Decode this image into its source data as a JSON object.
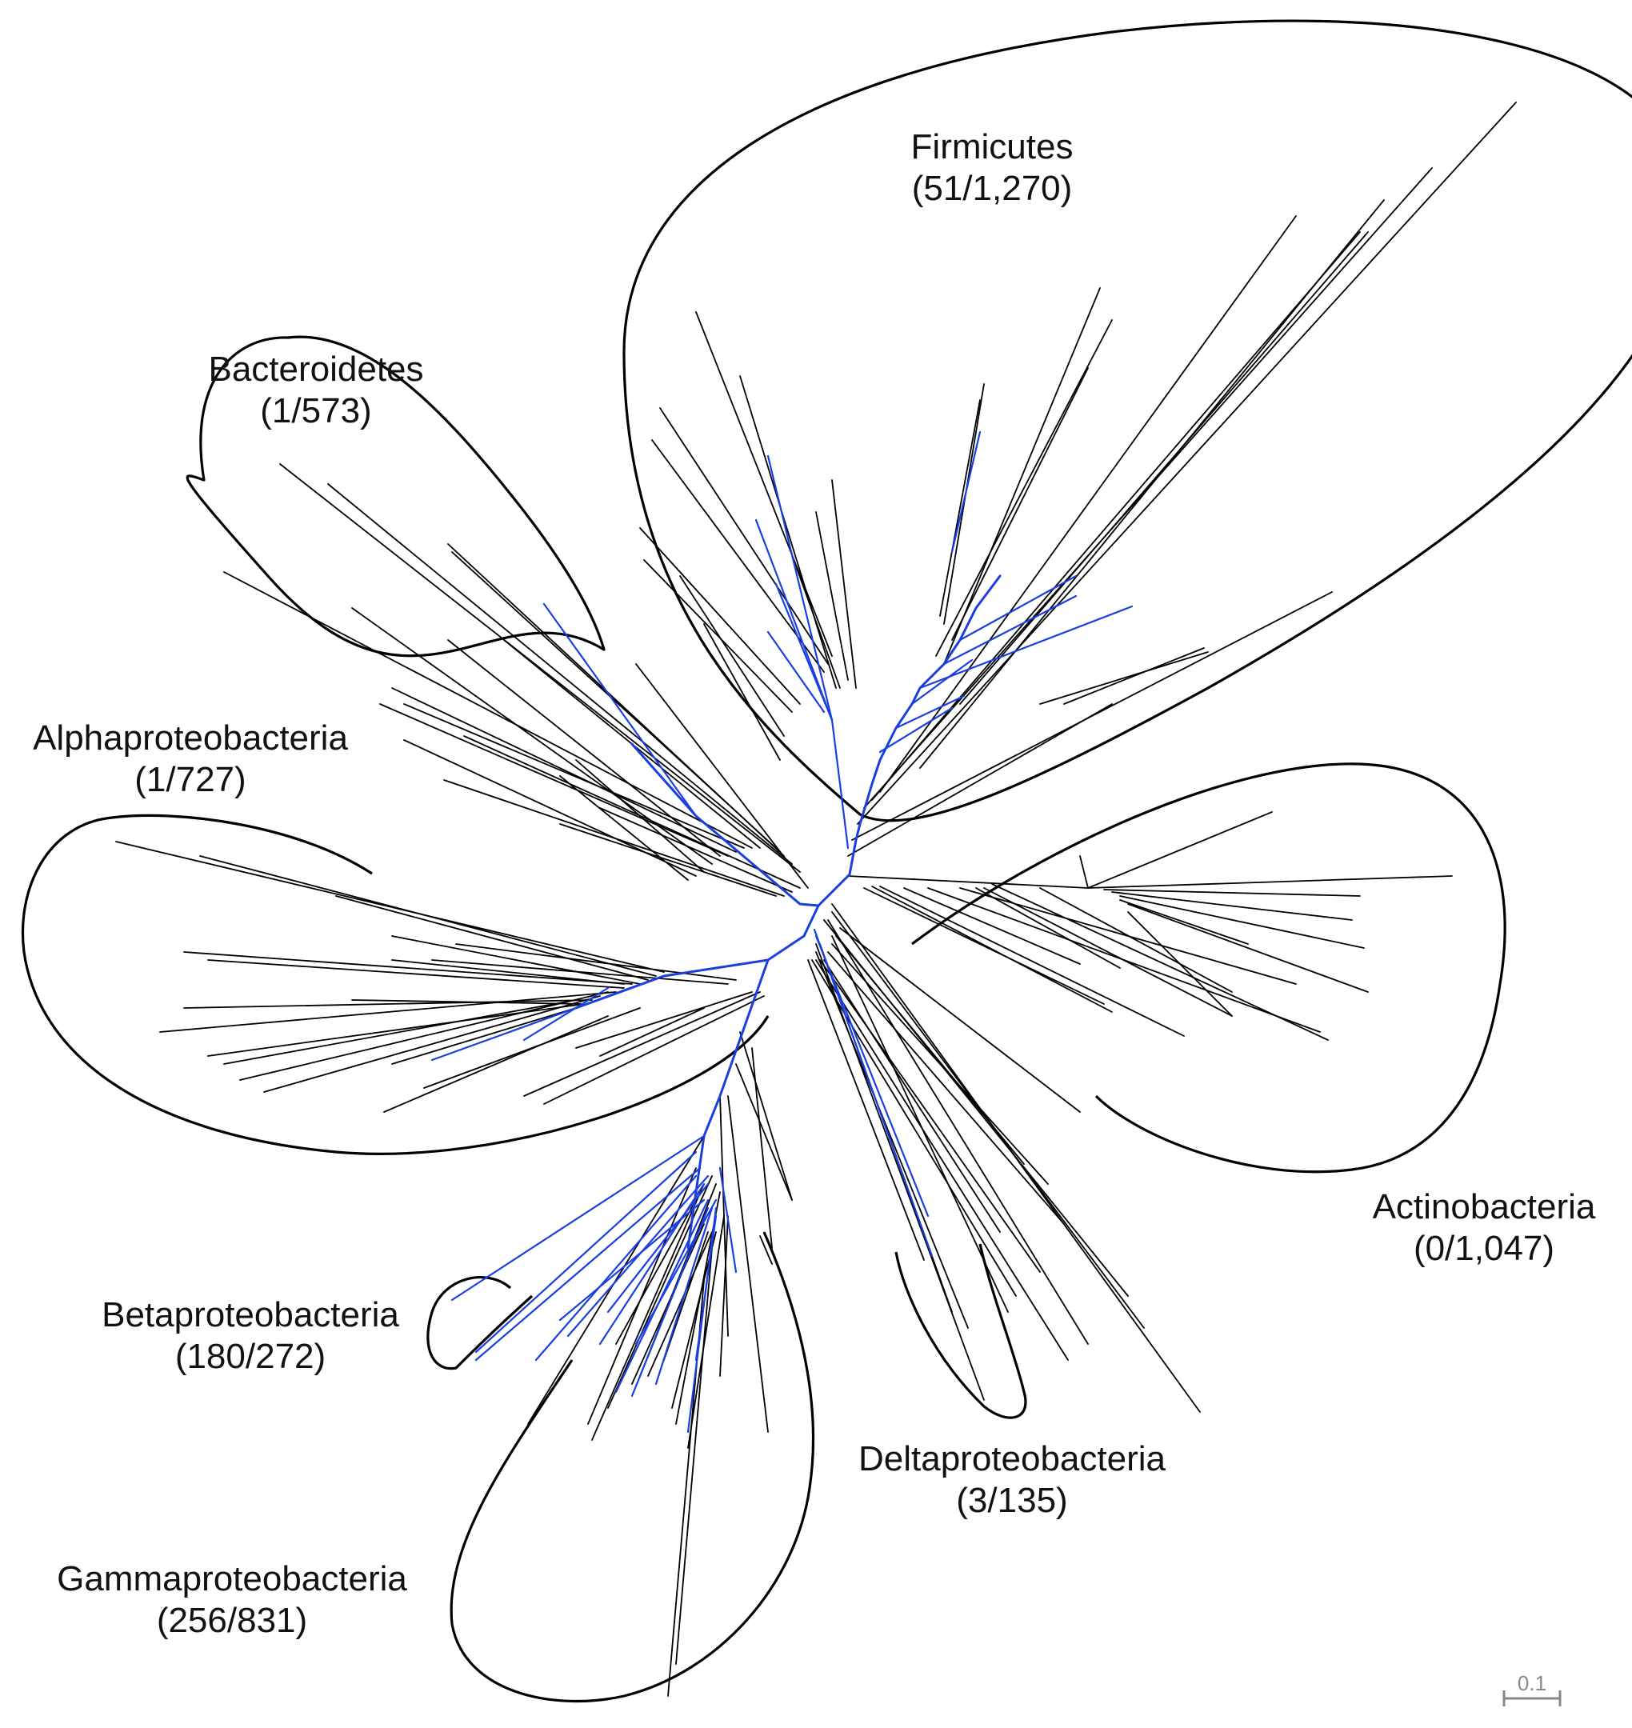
{
  "figure": {
    "type": "unrooted phylogenetic tree",
    "highlight_color": "#1a3fe0",
    "branch_color": "#000000"
  },
  "clades": [
    {
      "name": "Firmicutes",
      "count": "(51/1,270)"
    },
    {
      "name": "Bacteroidetes",
      "count": "(1/573)"
    },
    {
      "name": "Alphaproteobacteria",
      "count": "(1/727)"
    },
    {
      "name": "Actinobacteria",
      "count": "(0/1,047)"
    },
    {
      "name": "Betaproteobacteria",
      "count": "(180/272)"
    },
    {
      "name": "Deltaproteobacteria",
      "count": "(3/135)"
    },
    {
      "name": "Gammaproteobacteria",
      "count": "(256/831)"
    }
  ],
  "scale_bar": {
    "label": "0.1"
  }
}
